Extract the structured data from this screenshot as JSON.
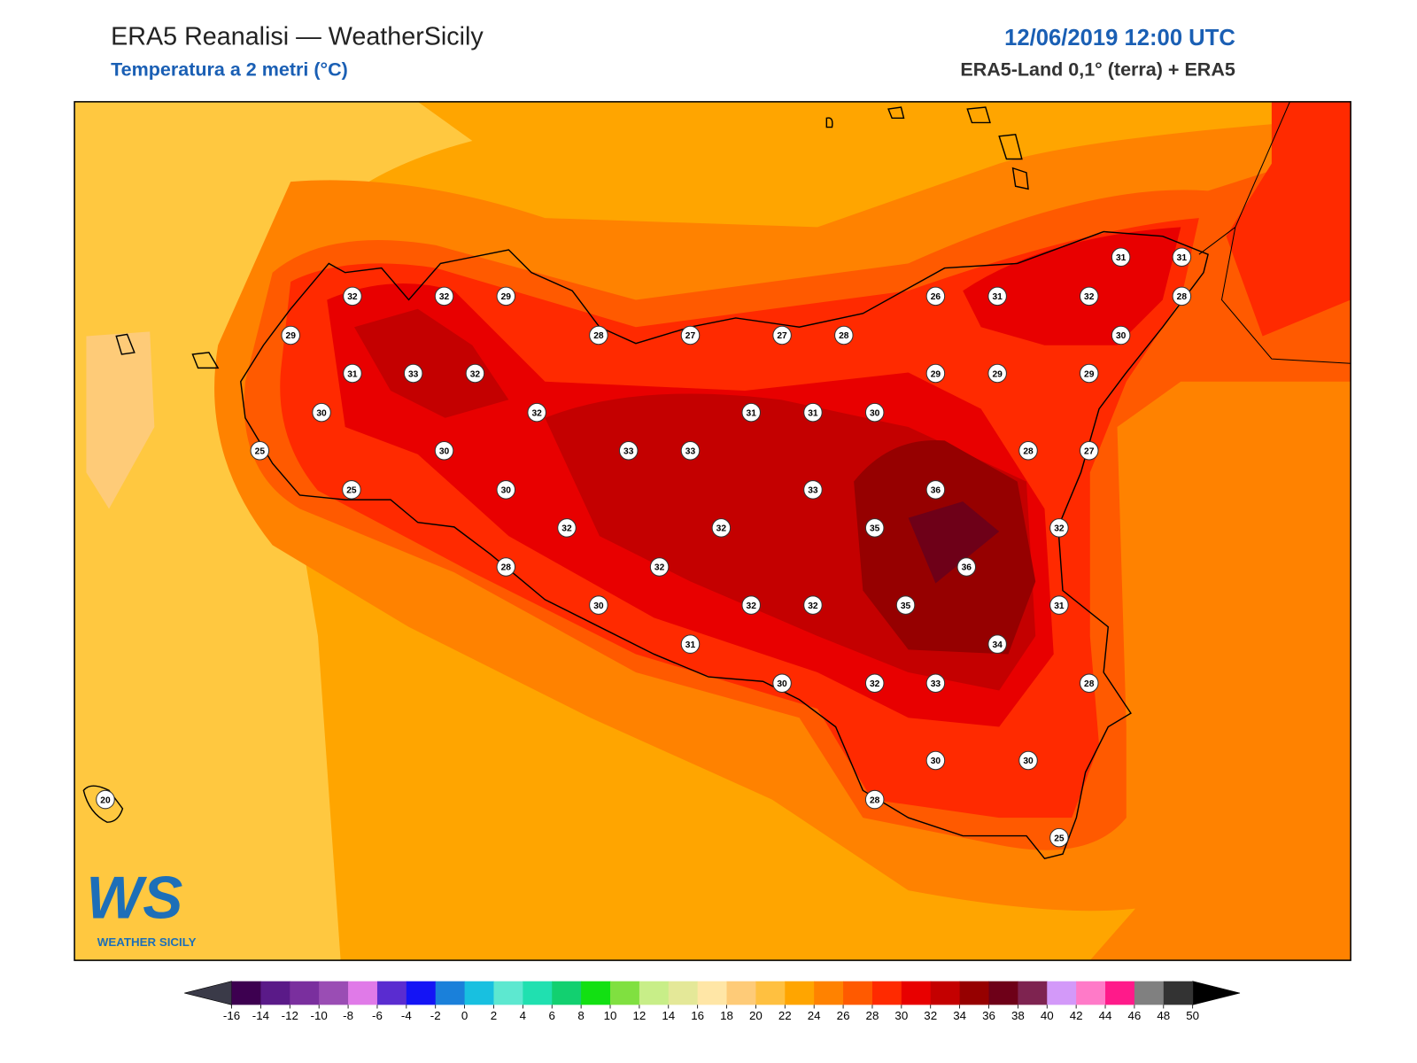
{
  "header": {
    "title": "ERA5 Reanalisi — WeatherSicily",
    "subtitle": "Temperatura a 2 metri (°C)",
    "date": "12/06/2019 12:00 UTC",
    "source": "ERA5-Land 0,1° (terra) + ERA5"
  },
  "map": {
    "stations": [
      32,
      32,
      29,
      29,
      31,
      33,
      32,
      30,
      25,
      30,
      32,
      25,
      30,
      28,
      27,
      27,
      28,
      26,
      31,
      32,
      31,
      31,
      28,
      30,
      29,
      29,
      29,
      31,
      31,
      30,
      33,
      33,
      28,
      27,
      33,
      36,
      32,
      32,
      35,
      32,
      28,
      32,
      36,
      30,
      32,
      32,
      35,
      31,
      31,
      34,
      30,
      32,
      33,
      28,
      30,
      30,
      28,
      25,
      20
    ]
  },
  "logo": {
    "mark": "WS",
    "name": "WEATHER SICILY"
  },
  "colorbar": {
    "ticks": [
      -16,
      -14,
      -12,
      -10,
      -8,
      -6,
      -4,
      -2,
      0,
      2,
      4,
      6,
      8,
      10,
      12,
      14,
      16,
      18,
      20,
      22,
      24,
      26,
      28,
      30,
      32,
      34,
      36,
      38,
      40,
      42,
      44,
      46,
      48,
      50
    ],
    "colors": [
      "#3d0050",
      "#5a1a88",
      "#7a2f9e",
      "#9a4db4",
      "#e07ae8",
      "#5a2cd0",
      "#1414f5",
      "#1a80da",
      "#18c0e0",
      "#5de8d0",
      "#20e0b0",
      "#12d070",
      "#12e012",
      "#80e040",
      "#c8ee88",
      "#e4e898",
      "#ffe6a6",
      "#fecb78",
      "#ffc040",
      "#ffa500",
      "#ff8200",
      "#ff5a00",
      "#ff2a00",
      "#e80000",
      "#c40000",
      "#960000",
      "#6e0018",
      "#7e2350",
      "#d399f9",
      "#ff7ac8",
      "#ff1a8a",
      "#808080",
      "#333333"
    ],
    "under_color": "#3a3a48",
    "over_color": "#000000"
  }
}
